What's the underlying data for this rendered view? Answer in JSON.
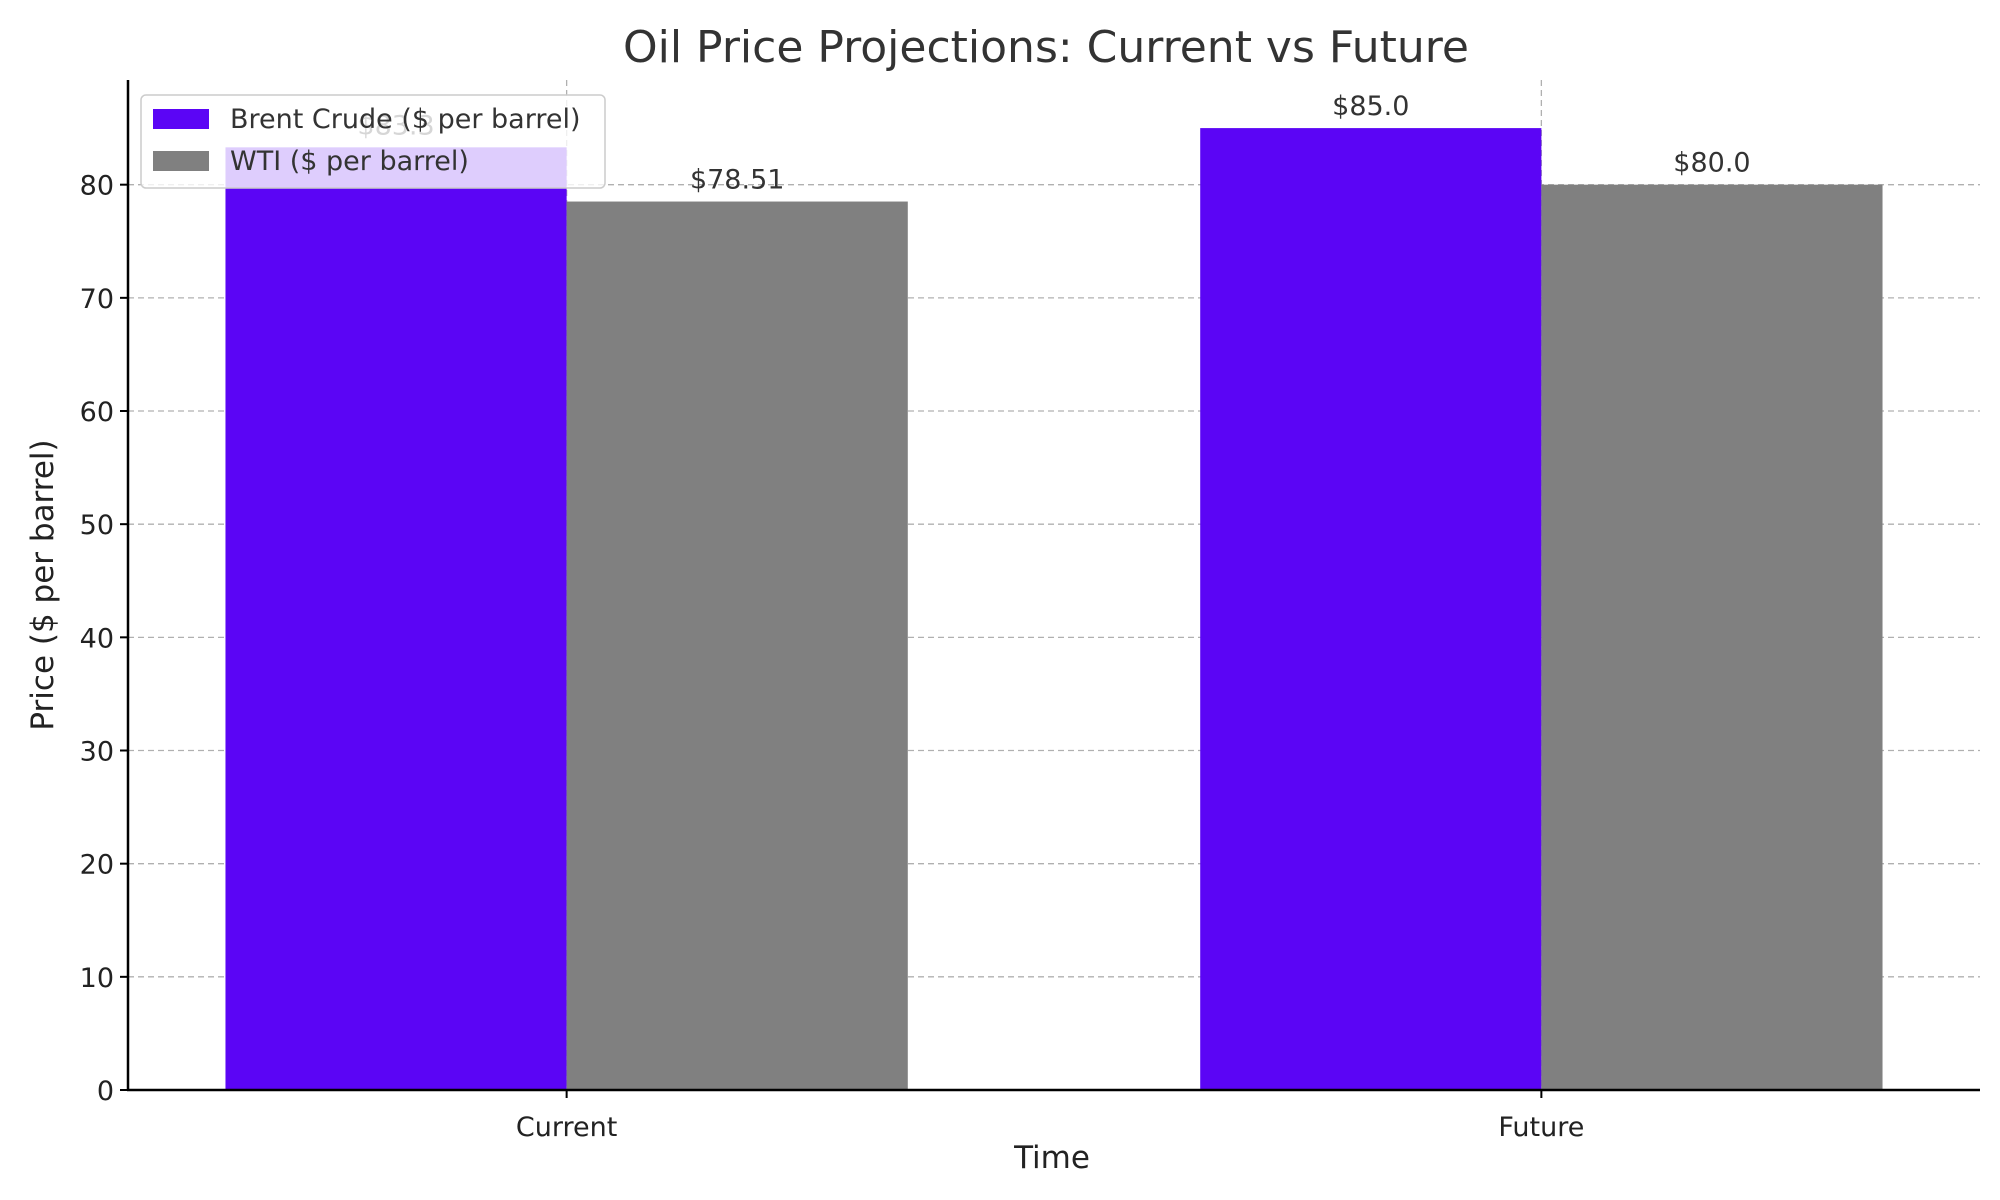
{
  "chart_data": {
    "type": "bar",
    "title": "Oil Price Projections: Current vs Future",
    "xlabel": "Time",
    "ylabel": "Price ($ per barrel)",
    "categories": [
      "Current",
      "Future"
    ],
    "series": [
      {
        "name": "Brent Crude ($ per barrel)",
        "values": [
          83.3,
          85.0
        ],
        "labels": [
          "$83.3",
          "$85.0"
        ],
        "color": "#5b05f5"
      },
      {
        "name": "WTI ($ per barrel)",
        "values": [
          78.51,
          80.0
        ],
        "labels": [
          "$78.51",
          "$80.0"
        ],
        "color": "#808080"
      }
    ],
    "ylim": [
      0,
      89.25
    ],
    "yticks": [
      0,
      10,
      20,
      30,
      40,
      50,
      60,
      70,
      80
    ],
    "grid": true,
    "legend_position": "top-left"
  }
}
